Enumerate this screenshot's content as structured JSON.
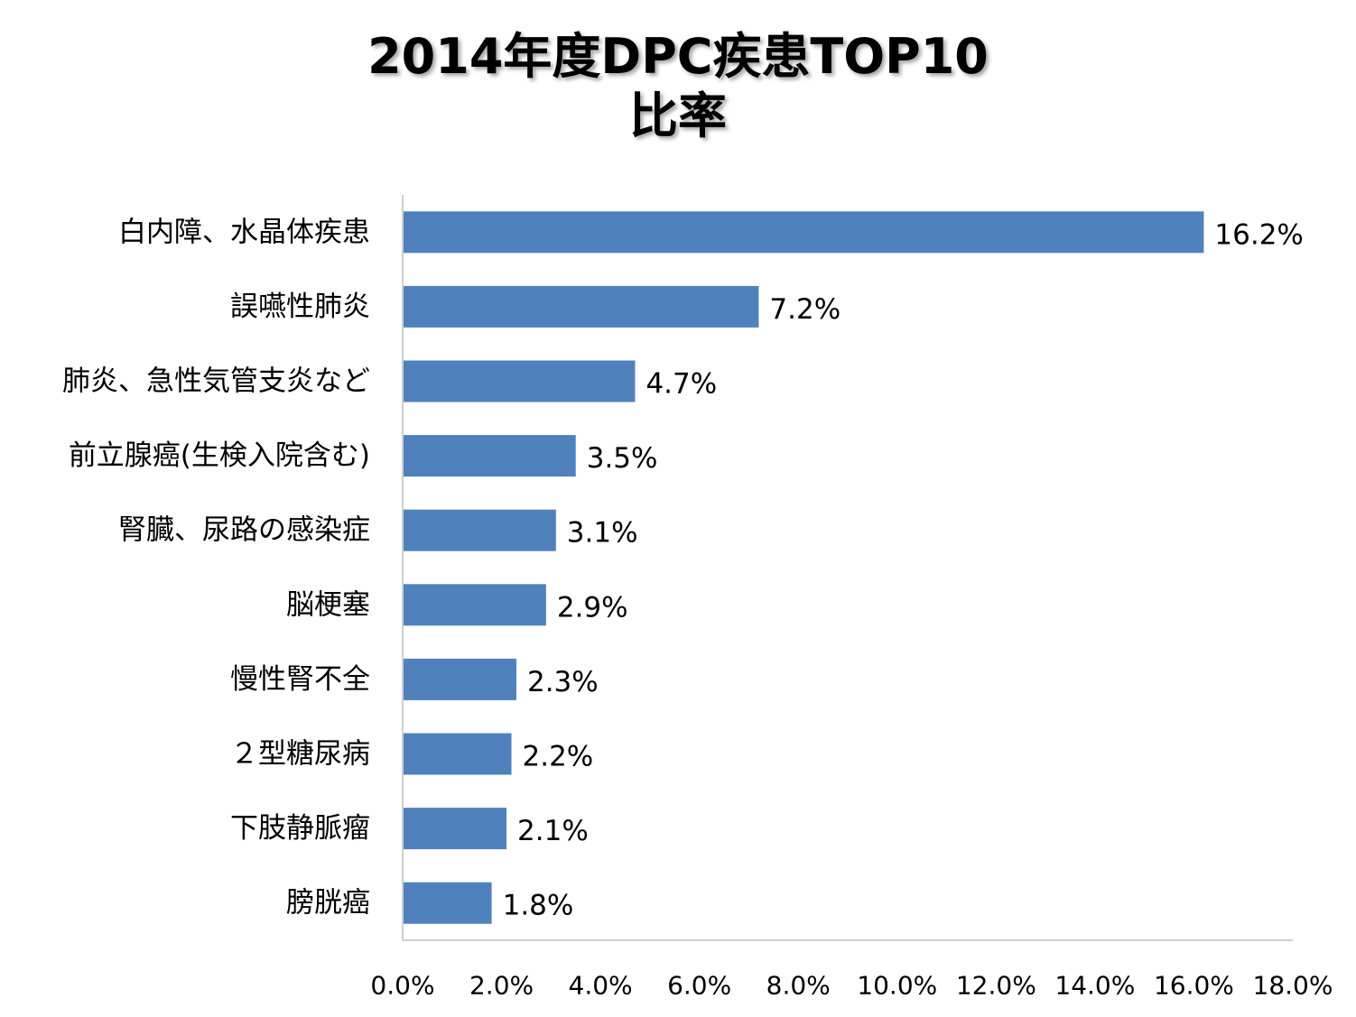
{
  "chart_data": {
    "type": "bar",
    "orientation": "horizontal",
    "title_lines": [
      "2014年度DPC疾患TOP10",
      "比率"
    ],
    "categories": [
      "白内障、水晶体疾患",
      "誤嚥性肺炎",
      "肺炎、急性気管支炎など",
      "前立腺癌(生検入院含む)",
      "腎臓、尿路の感染症",
      "脳梗塞",
      "慢性腎不全",
      "２型糖尿病",
      "下肢静脈瘤",
      "膀胱癌"
    ],
    "values": [
      16.2,
      7.2,
      4.7,
      3.5,
      3.1,
      2.9,
      2.3,
      2.2,
      2.1,
      1.8
    ],
    "value_labels": [
      "16.2%",
      "7.2%",
      "4.7%",
      "3.5%",
      "3.1%",
      "2.9%",
      "2.3%",
      "2.2%",
      "2.1%",
      "1.8%"
    ],
    "xlim": [
      0,
      18
    ],
    "x_ticks": [
      0,
      2,
      4,
      6,
      8,
      10,
      12,
      14,
      16,
      18
    ],
    "x_tick_labels": [
      "0.0%",
      "2.0%",
      "4.0%",
      "6.0%",
      "8.0%",
      "10.0%",
      "12.0%",
      "14.0%",
      "16.0%",
      "18.0%"
    ],
    "xlabel": "",
    "ylabel": "",
    "grid": false,
    "legend": "none",
    "bar_color": "#4f81bd",
    "axis_color": "#bfbfbf"
  }
}
